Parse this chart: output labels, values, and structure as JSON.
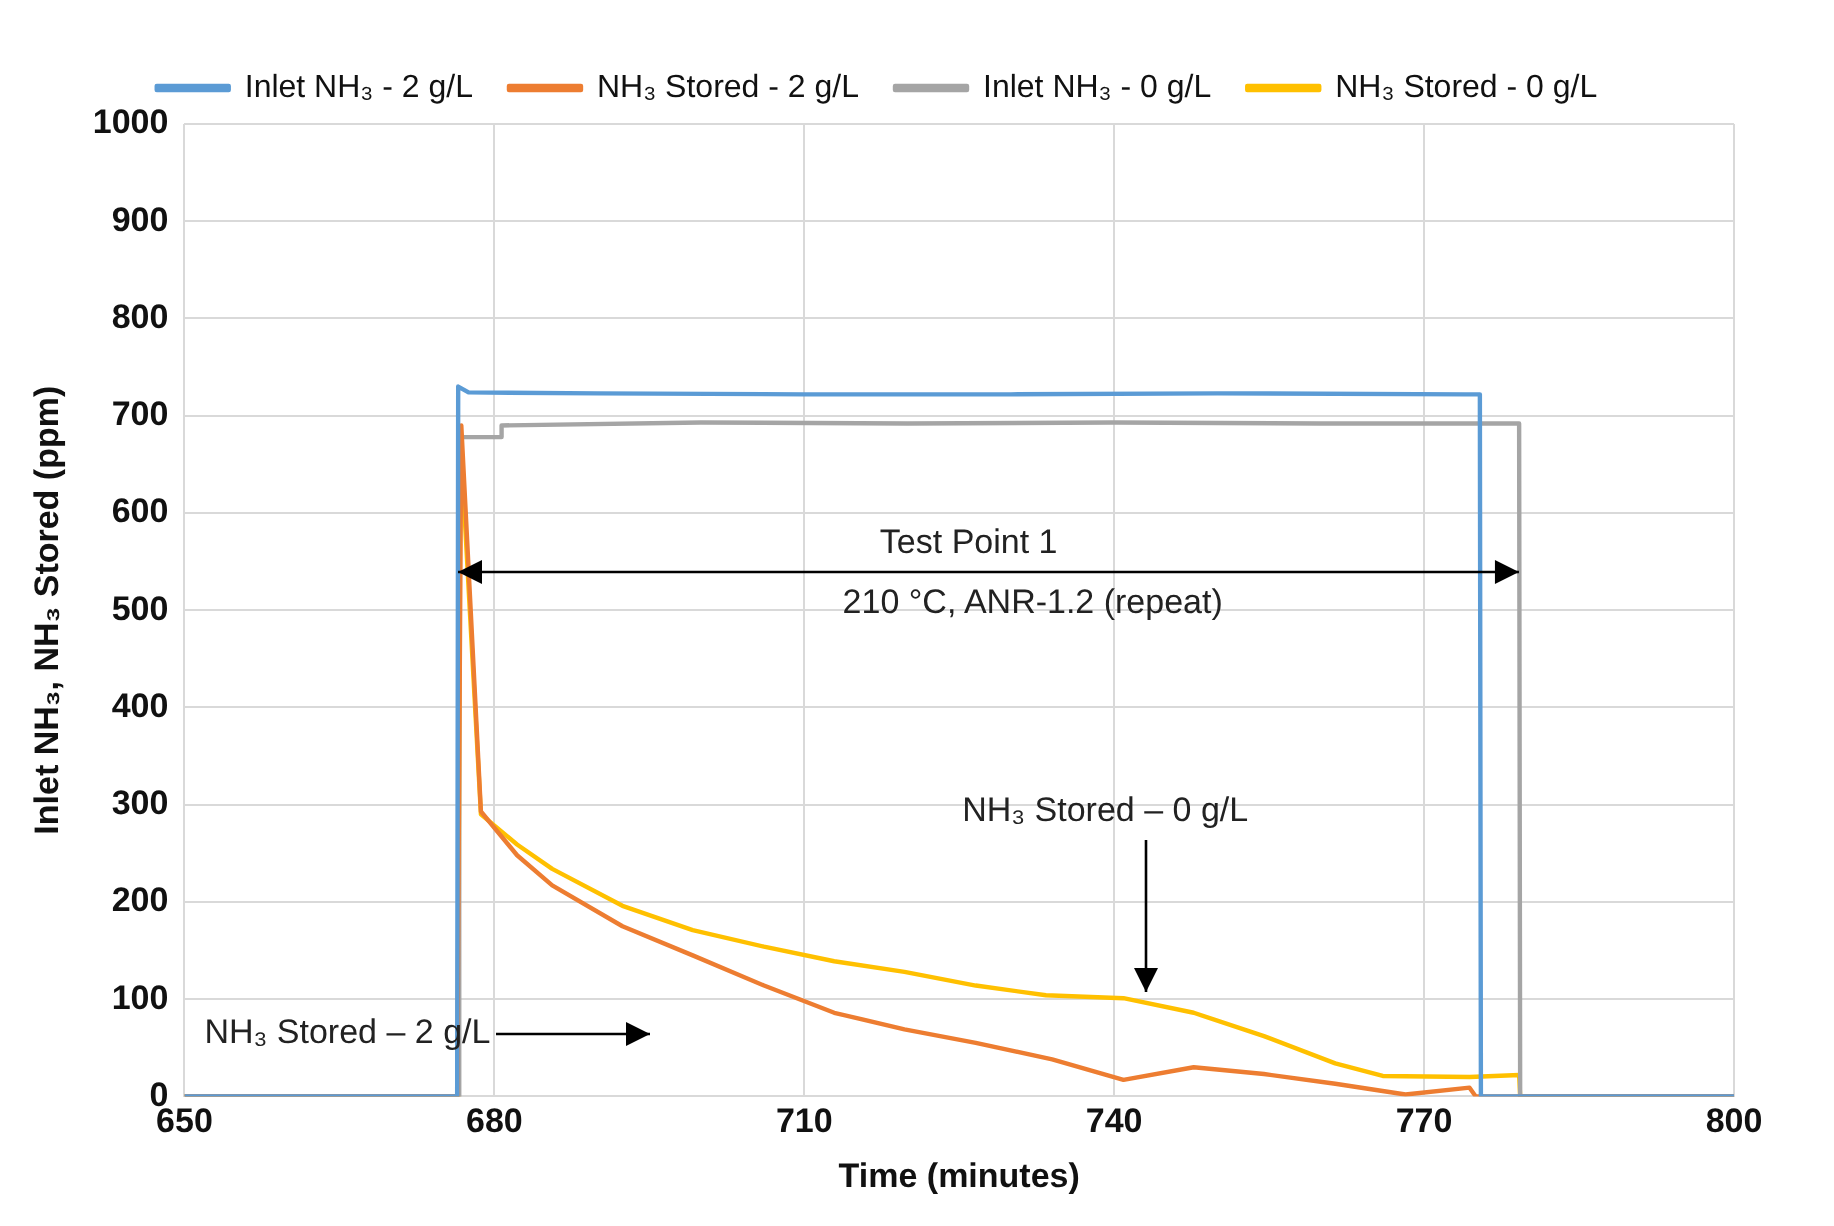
{
  "chart_data": {
    "type": "line",
    "xlabel": "Time (minutes)",
    "ylabel": "Inlet NH₃, NH₃ Stored (ppm)",
    "xlim": [
      650,
      800
    ],
    "xticks": [
      650,
      680,
      710,
      740,
      770,
      800
    ],
    "ylim": [
      0,
      1000
    ],
    "yticks": [
      0,
      100,
      200,
      300,
      400,
      500,
      600,
      700,
      800,
      900,
      1000
    ],
    "grid": true,
    "legend": "top",
    "marker": "none",
    "line_style": "solid",
    "series": [
      {
        "name": "Inlet NH₃ - 2 g/L",
        "color": "#5b9bd5",
        "x": [
          650,
          676.4,
          676.5,
          677.5,
          690,
          710,
          730,
          750,
          774,
          775.4,
          775.5,
          800
        ],
        "values": [
          0,
          0,
          730,
          724,
          723,
          722,
          722,
          723,
          722,
          722,
          0,
          0
        ]
      },
      {
        "name": "NH₃ Stored - 2 g/L",
        "color": "#ed7d31",
        "x": [
          650,
          676.4,
          676.8,
          678.7,
          682.2,
          685.6,
          692.4,
          699.2,
          706.1,
          712.9,
          719.7,
          726.6,
          734,
          740.9,
          747.7,
          754.5,
          761.4,
          768.2,
          774.4,
          775,
          800
        ],
        "values": [
          0,
          0,
          690,
          293,
          248,
          217,
          175,
          145,
          114,
          86,
          69,
          55,
          38,
          17,
          30,
          23,
          13,
          2,
          9,
          0,
          0
        ]
      },
      {
        "name": "Inlet NH₃ - 0 g/L",
        "color": "#a5a5a5",
        "x": [
          650,
          676.5,
          676.6,
          680.6,
          680.7,
          700,
          720,
          740,
          760,
          779.2,
          779.3,
          800
        ],
        "values": [
          0,
          0,
          678,
          678,
          690,
          693,
          692,
          693,
          692,
          692,
          0,
          0
        ]
      },
      {
        "name": "NH₃ Stored - 0 g/L",
        "color": "#ffc000",
        "x": [
          650,
          676.5,
          676.7,
          678.7,
          682.2,
          685.6,
          692.4,
          699.2,
          706.1,
          712.9,
          719.7,
          726.6,
          733.4,
          740.9,
          747.7,
          754.5,
          761.4,
          766,
          774.4,
          779.2,
          779.3,
          800
        ],
        "values": [
          0,
          0,
          680,
          290,
          259,
          234,
          196,
          171,
          154,
          139,
          128,
          114,
          104,
          101,
          86,
          62,
          34,
          21,
          20,
          22,
          0,
          0
        ]
      }
    ],
    "annotations": [
      "Test Point 1",
      "210 °C, ANR-1.2 (repeat)",
      {
        "text": "NH₃ Stored – 0 g/L",
        "x": 743,
        "y": 100
      },
      "NH₃ Stored – 2 g/L"
    ]
  }
}
